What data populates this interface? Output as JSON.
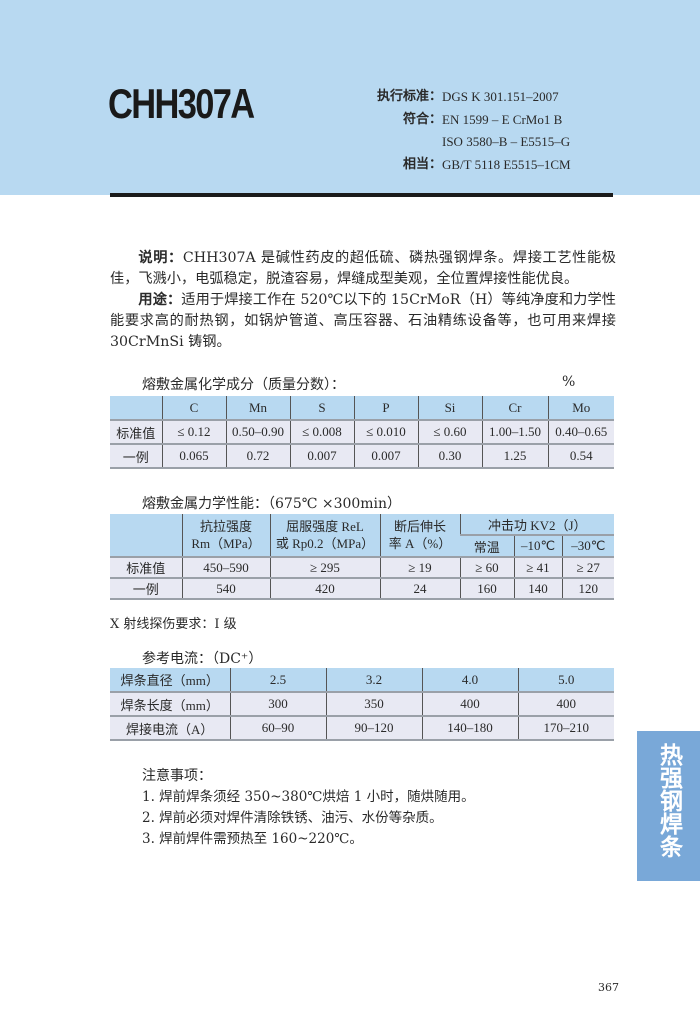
{
  "header": {
    "title": "CHH307A",
    "standards": [
      {
        "label": "执行标准：",
        "value": "DGS K 301.151–2007"
      },
      {
        "label": "符合：",
        "value": "EN 1599 – E CrMo1 B"
      },
      {
        "label": "",
        "value": "ISO 3580–B – E5515–G"
      },
      {
        "label": "相当：",
        "value": "GB/T 5118 E5515–1CM"
      }
    ]
  },
  "description": {
    "label": "说明：",
    "text": "CHH307A 是碱性药皮的超低硫、磷热强钢焊条。焊接工艺性能极佳，飞溅小，电弧稳定，脱渣容易，焊缝成型美观，全位置焊接性能优良。"
  },
  "usage": {
    "label": "用途：",
    "text": "适用于焊接工作在 520℃以下的 15CrMoR（H）等纯净度和力学性能要求高的耐热钢，如锅炉管道、高压容器、石油精练设备等，也可用来焊接 30CrMnSi 铸钢。"
  },
  "chem": {
    "title": "熔敷金属化学成分",
    "title_note": "（质量分数）：",
    "unit": "%",
    "headers": [
      "",
      "C",
      "Mn",
      "S",
      "P",
      "Si",
      "Cr",
      "Mo"
    ],
    "rows": [
      [
        "标准值",
        "≤ 0.12",
        "0.50–0.90",
        "≤ 0.008",
        "≤ 0.010",
        "≤ 0.60",
        "1.00–1.50",
        "0.40–0.65"
      ],
      [
        "一例",
        "0.065",
        "0.72",
        "0.007",
        "0.007",
        "0.30",
        "1.25",
        "0.54"
      ]
    ]
  },
  "mech": {
    "title": "熔敷金属力学性能：",
    "title_note": "（675℃ ×300min）",
    "headers": [
      "抗拉强度\nRm（MPa）",
      "屈服强度 ReL\n或 Rp0.2（MPa）",
      "断后伸长\n率 A（%）",
      "冲击功 KV2（J）"
    ],
    "subheaders": [
      "常温",
      "–10℃",
      "–30℃"
    ],
    "rows": [
      [
        "标准值",
        "450–590",
        "≥ 295",
        "≥ 19",
        "≥ 60",
        "≥ 41",
        "≥ 27"
      ],
      [
        "一例",
        "540",
        "420",
        "24",
        "160",
        "140",
        "120"
      ]
    ],
    "note": "X 射线探伤要求：I 级"
  },
  "current": {
    "title": "参考电流：",
    "title_note": "（DC⁺）",
    "rows": [
      [
        "焊条直径（mm）",
        "2.5",
        "3.2",
        "4.0",
        "5.0"
      ],
      [
        "焊条长度（mm）",
        "300",
        "350",
        "400",
        "400"
      ],
      [
        "焊接电流（A）",
        "60–90",
        "90–120",
        "140–180",
        "170–210"
      ]
    ]
  },
  "notes": {
    "title": "注意事项：",
    "items": [
      "1. 焊前焊条须经 350~380℃烘焙 1 小时，随烘随用。",
      "2. 焊前必须对焊件清除铁锈、油污、水份等杂质。",
      "3. 焊前焊件需预热至 160~220℃。"
    ]
  },
  "side_tab": "热强钢焊条",
  "page_number": "367",
  "colors": {
    "header_bg": "#b8d9f1",
    "row_bg": "#e8e9f3",
    "tab_bg": "#79a8d8"
  }
}
